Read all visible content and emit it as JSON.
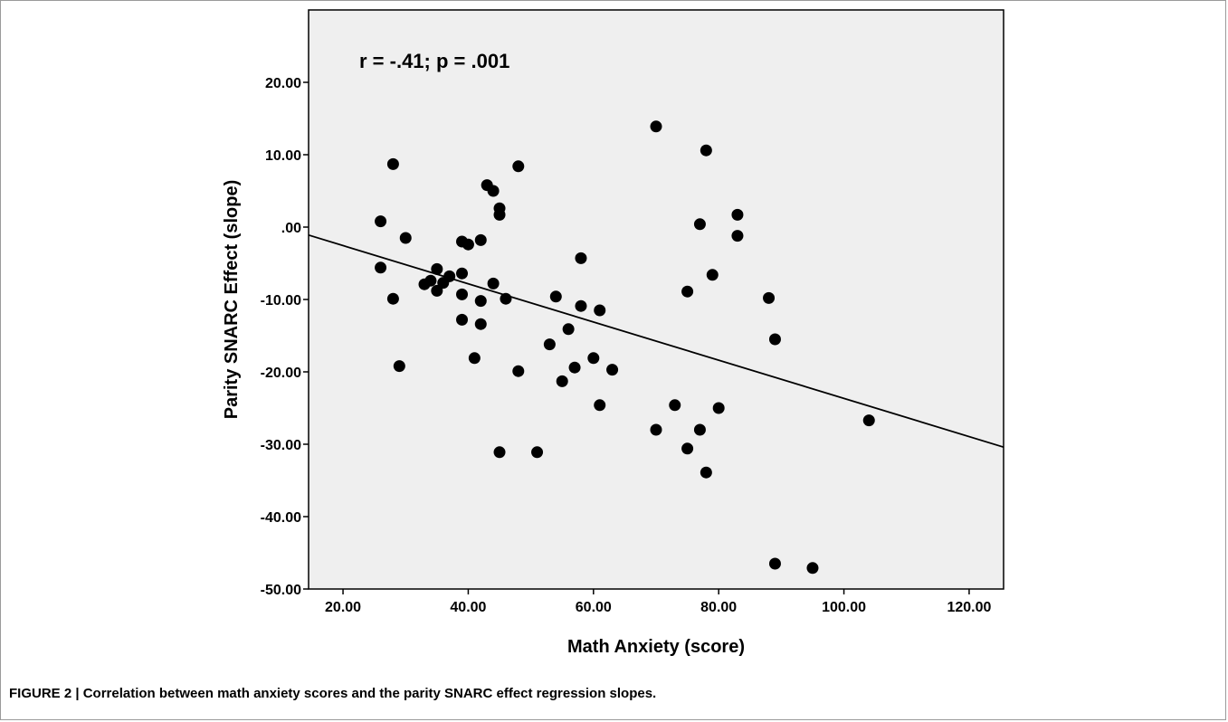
{
  "caption": "FIGURE 2 | Correlation between math anxiety scores and the parity SNARC effect regression slopes.",
  "chart_data": {
    "type": "scatter",
    "title": "",
    "xlabel": "Math Anxiety (score)",
    "ylabel": "Parity SNARC Effect (slope)",
    "annotation": "r = -.41; p = .001",
    "xlim": [
      14.5,
      125.5
    ],
    "ylim": [
      -50,
      30
    ],
    "x_ticks": [
      20,
      40,
      60,
      80,
      100,
      120
    ],
    "x_tick_labels": [
      "20.00",
      "40.00",
      "60.00",
      "80.00",
      "100.00",
      "120.00"
    ],
    "y_ticks": [
      -50,
      -40,
      -30,
      -20,
      -10,
      0,
      10,
      20
    ],
    "y_tick_labels": [
      "-50.00",
      "-40.00",
      "-30.00",
      "-20.00",
      "-10.00",
      ".00",
      "10.00",
      "20.00"
    ],
    "grid": false,
    "colors": {
      "plot_background": "#efefef",
      "marker": "#000000",
      "line": "#000000"
    },
    "fit_line": {
      "x": [
        14.5,
        125.5
      ],
      "y": [
        -1.1,
        -30.4
      ]
    },
    "points": [
      {
        "x": 26,
        "y": 0.8
      },
      {
        "x": 26,
        "y": -5.6
      },
      {
        "x": 28,
        "y": 8.7
      },
      {
        "x": 28,
        "y": -9.9
      },
      {
        "x": 29,
        "y": -19.2
      },
      {
        "x": 30,
        "y": -1.5
      },
      {
        "x": 33,
        "y": -7.9
      },
      {
        "x": 34,
        "y": -7.4
      },
      {
        "x": 35,
        "y": -5.8
      },
      {
        "x": 35,
        "y": -8.8
      },
      {
        "x": 36,
        "y": -7.7
      },
      {
        "x": 37,
        "y": -6.8
      },
      {
        "x": 39,
        "y": -2.0
      },
      {
        "x": 39,
        "y": -6.4
      },
      {
        "x": 39,
        "y": -9.3
      },
      {
        "x": 39,
        "y": -12.8
      },
      {
        "x": 40,
        "y": -2.4
      },
      {
        "x": 41,
        "y": -18.1
      },
      {
        "x": 42,
        "y": -1.8
      },
      {
        "x": 42,
        "y": -10.2
      },
      {
        "x": 42,
        "y": -13.4
      },
      {
        "x": 43,
        "y": 5.8
      },
      {
        "x": 44,
        "y": 5.0
      },
      {
        "x": 44,
        "y": -7.8
      },
      {
        "x": 45,
        "y": 2.6
      },
      {
        "x": 45,
        "y": 1.7
      },
      {
        "x": 45,
        "y": -31.1
      },
      {
        "x": 46,
        "y": -9.9
      },
      {
        "x": 48,
        "y": 8.4
      },
      {
        "x": 48,
        "y": -19.9
      },
      {
        "x": 51,
        "y": -31.1
      },
      {
        "x": 53,
        "y": -16.2
      },
      {
        "x": 54,
        "y": -9.6
      },
      {
        "x": 55,
        "y": -21.3
      },
      {
        "x": 56,
        "y": -14.1
      },
      {
        "x": 57,
        "y": -19.4
      },
      {
        "x": 58,
        "y": -4.3
      },
      {
        "x": 58,
        "y": -10.9
      },
      {
        "x": 60,
        "y": -18.1
      },
      {
        "x": 61,
        "y": -11.5
      },
      {
        "x": 61,
        "y": -24.6
      },
      {
        "x": 63,
        "y": -19.7
      },
      {
        "x": 70,
        "y": 13.9
      },
      {
        "x": 70,
        "y": -28.0
      },
      {
        "x": 73,
        "y": -24.6
      },
      {
        "x": 75,
        "y": -8.9
      },
      {
        "x": 75,
        "y": -30.6
      },
      {
        "x": 77,
        "y": 0.4
      },
      {
        "x": 77,
        "y": -28.0
      },
      {
        "x": 78,
        "y": 10.6
      },
      {
        "x": 78,
        "y": -33.9
      },
      {
        "x": 79,
        "y": -6.6
      },
      {
        "x": 80,
        "y": -25.0
      },
      {
        "x": 83,
        "y": 1.7
      },
      {
        "x": 83,
        "y": -1.2
      },
      {
        "x": 88,
        "y": -9.8
      },
      {
        "x": 89,
        "y": -15.5
      },
      {
        "x": 89,
        "y": -46.5
      },
      {
        "x": 95,
        "y": -47.1
      },
      {
        "x": 104,
        "y": -26.7
      }
    ]
  }
}
